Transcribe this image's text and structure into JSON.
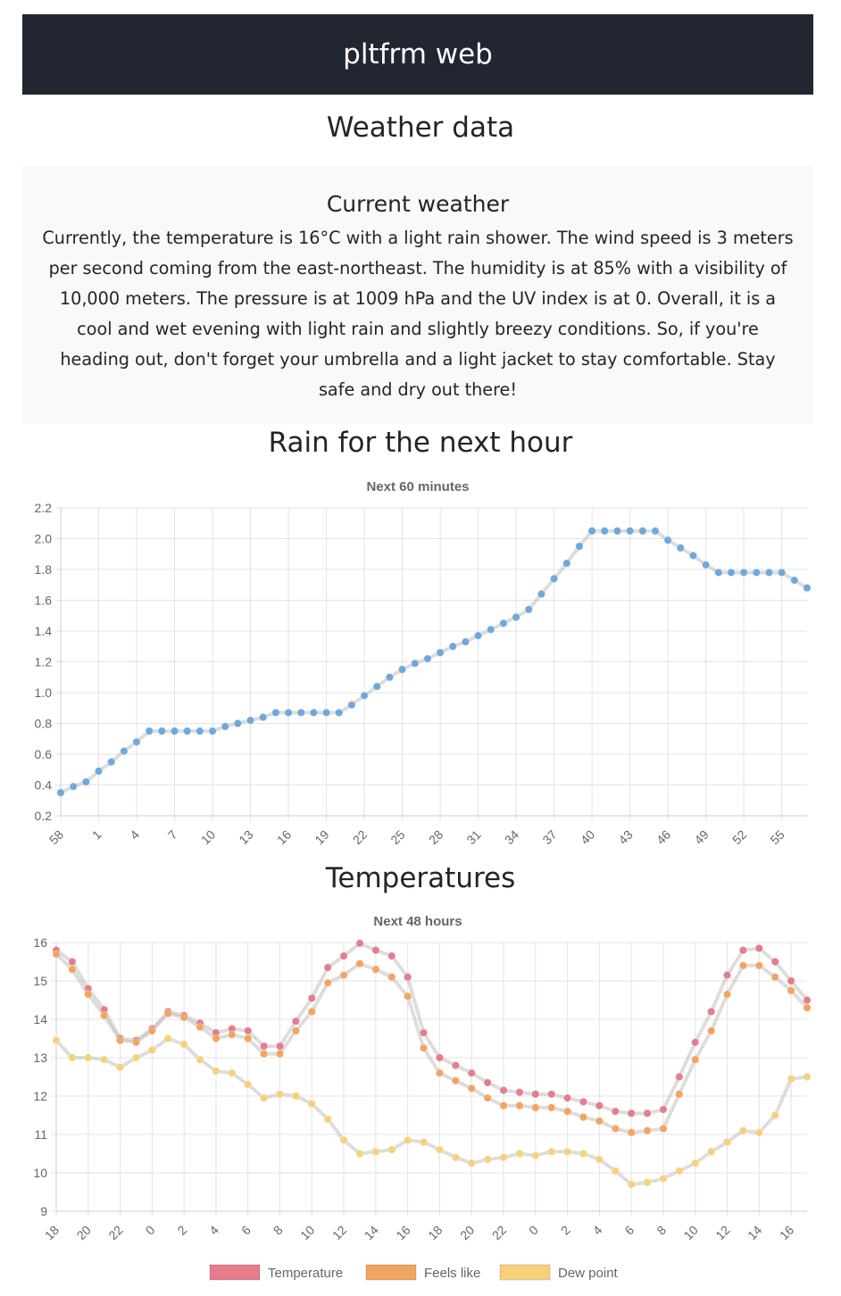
{
  "header": {
    "title": "pltfrm web"
  },
  "page_title": "Weather data",
  "current": {
    "heading": "Current weather",
    "text": "Currently, the temperature is 16°C with a light rain shower. The wind speed is 3 meters per second coming from the east-northeast. The humidity is at 85% with a visibility of 10,000 meters. The pressure is at 1009 hPa and the UV index is at 0. Overall, it is a cool and wet evening with light rain and slightly breezy conditions. So, if you're heading out, don't forget your umbrella and a light jacket to stay comfortable. Stay safe and dry out there!"
  },
  "rain_section": {
    "title": "Rain for the next hour"
  },
  "temp_section": {
    "title": "Temperatures"
  },
  "chart_data": [
    {
      "type": "line",
      "title": "Next 60 minutes",
      "ylim": [
        0.2,
        2.2
      ],
      "yticks": [
        0.2,
        0.4,
        0.6,
        0.8,
        1.0,
        1.2,
        1.4,
        1.6,
        1.8,
        2.0,
        2.2
      ],
      "categories": [
        "58",
        "59",
        "0",
        "1",
        "2",
        "3",
        "4",
        "5",
        "6",
        "7",
        "8",
        "9",
        "10",
        "11",
        "12",
        "13",
        "14",
        "15",
        "16",
        "17",
        "18",
        "19",
        "20",
        "21",
        "22",
        "23",
        "24",
        "25",
        "26",
        "27",
        "28",
        "29",
        "30",
        "31",
        "32",
        "33",
        "34",
        "35",
        "36",
        "37",
        "38",
        "39",
        "40",
        "41",
        "42",
        "43",
        "44",
        "45",
        "46",
        "47",
        "48",
        "49",
        "50",
        "51",
        "52",
        "53",
        "54",
        "55",
        "56",
        "57"
      ],
      "tick_labels": [
        "58",
        "1",
        "4",
        "7",
        "10",
        "13",
        "16",
        "19",
        "22",
        "25",
        "28",
        "31",
        "34",
        "37",
        "40",
        "43",
        "46",
        "49",
        "52",
        "55"
      ],
      "series": [
        {
          "color": "#6fa8dc",
          "values": [
            0.35,
            0.39,
            0.42,
            0.49,
            0.55,
            0.62,
            0.68,
            0.75,
            0.75,
            0.75,
            0.75,
            0.75,
            0.75,
            0.78,
            0.8,
            0.82,
            0.84,
            0.87,
            0.87,
            0.87,
            0.87,
            0.87,
            0.87,
            0.92,
            0.98,
            1.04,
            1.1,
            1.15,
            1.19,
            1.22,
            1.26,
            1.3,
            1.33,
            1.37,
            1.41,
            1.45,
            1.49,
            1.54,
            1.64,
            1.74,
            1.84,
            1.95,
            2.05,
            2.05,
            2.05,
            2.05,
            2.05,
            2.05,
            1.99,
            1.94,
            1.89,
            1.83,
            1.78,
            1.78,
            1.78,
            1.78,
            1.78,
            1.78,
            1.73,
            1.68
          ]
        }
      ]
    },
    {
      "type": "line",
      "title": "Next 48 hours",
      "ylim": [
        9,
        16
      ],
      "yticks": [
        9,
        10,
        11,
        12,
        13,
        14,
        15,
        16
      ],
      "categories": [
        "18",
        "19",
        "20",
        "21",
        "22",
        "23",
        "0",
        "1",
        "2",
        "3",
        "4",
        "5",
        "6",
        "7",
        "8",
        "9",
        "10",
        "11",
        "12",
        "13",
        "14",
        "15",
        "16",
        "17",
        "18",
        "19",
        "20",
        "21",
        "22",
        "23",
        "0",
        "1",
        "2",
        "3",
        "4",
        "5",
        "6",
        "7",
        "8",
        "9",
        "10",
        "11",
        "12",
        "13",
        "14",
        "15",
        "16",
        "17"
      ],
      "tick_labels": [
        "18",
        "20",
        "22",
        "0",
        "2",
        "4",
        "6",
        "8",
        "10",
        "12",
        "14",
        "16",
        "18",
        "20",
        "22",
        "0",
        "2",
        "4",
        "6",
        "8",
        "10",
        "12",
        "14",
        "16"
      ],
      "legend_position": "bottom",
      "series": [
        {
          "name": "Temperature",
          "color": "#e67c8c",
          "values": [
            15.8,
            15.5,
            14.8,
            14.25,
            13.5,
            13.45,
            13.75,
            14.2,
            14.1,
            13.9,
            13.65,
            13.75,
            13.7,
            13.3,
            13.3,
            13.95,
            14.55,
            15.35,
            15.65,
            15.98,
            15.8,
            15.65,
            15.1,
            13.65,
            13.0,
            12.8,
            12.6,
            12.35,
            12.15,
            12.1,
            12.05,
            12.05,
            11.95,
            11.85,
            11.75,
            11.6,
            11.55,
            11.55,
            11.65,
            12.5,
            13.4,
            14.2,
            15.15,
            15.8,
            15.85,
            15.5,
            15.0,
            14.5
          ]
        },
        {
          "name": "Feels like",
          "color": "#f0a560",
          "values": [
            15.7,
            15.3,
            14.65,
            14.1,
            13.45,
            13.4,
            13.7,
            14.15,
            14.05,
            13.8,
            13.5,
            13.6,
            13.5,
            13.1,
            13.1,
            13.7,
            14.2,
            14.95,
            15.15,
            15.45,
            15.3,
            15.1,
            14.6,
            13.25,
            12.6,
            12.4,
            12.2,
            11.95,
            11.75,
            11.75,
            11.7,
            11.7,
            11.6,
            11.45,
            11.35,
            11.15,
            11.05,
            11.1,
            11.15,
            12.05,
            12.95,
            13.7,
            14.65,
            15.4,
            15.4,
            15.1,
            14.75,
            14.3
          ]
        },
        {
          "name": "Dew point",
          "color": "#f5d27a",
          "values": [
            13.45,
            13.0,
            13.0,
            12.95,
            12.75,
            13.0,
            13.2,
            13.5,
            13.35,
            12.95,
            12.65,
            12.6,
            12.3,
            11.95,
            12.05,
            12.0,
            11.8,
            11.4,
            10.85,
            10.5,
            10.55,
            10.6,
            10.85,
            10.8,
            10.6,
            10.4,
            10.25,
            10.35,
            10.4,
            10.5,
            10.45,
            10.55,
            10.55,
            10.5,
            10.35,
            10.05,
            9.7,
            9.75,
            9.85,
            10.05,
            10.25,
            10.55,
            10.8,
            11.1,
            11.05,
            11.5,
            12.45,
            12.5
          ]
        }
      ]
    }
  ]
}
